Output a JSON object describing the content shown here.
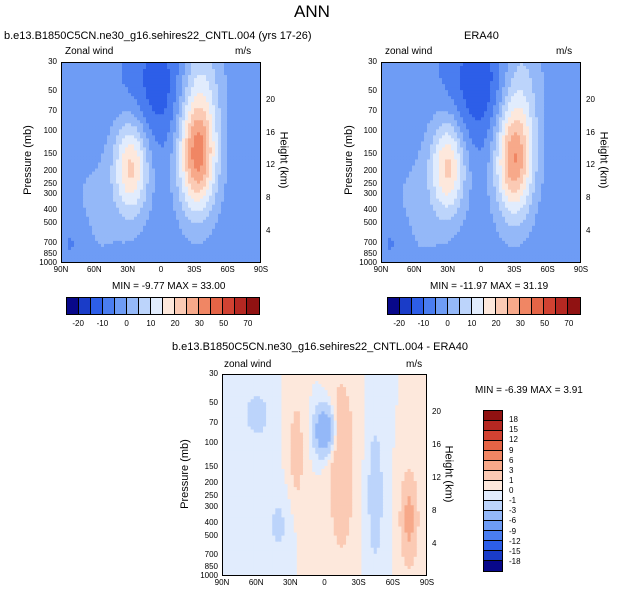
{
  "title": "ANN",
  "panels": [
    {
      "id": "model",
      "subtitle": "b.e13.B1850C5CN.ne30_g16.sehires22_CNTL.004 (yrs 17-26)",
      "left_label": "Zonal wind",
      "right_label": "m/s",
      "stats": "MIN = -9.77   MAX = 33.00"
    },
    {
      "id": "obs",
      "subtitle": "ERA40",
      "left_label": "zonal wind",
      "right_label": "m/s",
      "stats": "MIN = -11.97   MAX = 31.19"
    },
    {
      "id": "diff",
      "subtitle": "b.e13.B1850C5CN.ne30_g16.sehires22_CNTL.004 - ERA40",
      "left_label": "zonal wind",
      "right_label": "m/s",
      "stats": "MIN = -6.39   MAX =  3.91"
    }
  ],
  "axes": {
    "ylabel": "Pressure (mb)",
    "y2label": "Height (km)",
    "x_ticks": [
      "90N",
      "60N",
      "30N",
      "0",
      "30S",
      "60S",
      "90S"
    ],
    "y_ticks": [
      "30",
      "50",
      "70",
      "100",
      "150",
      "200",
      "250",
      "300",
      "400",
      "500",
      "700",
      "850",
      "1000"
    ],
    "y2_ticks": [
      "20",
      "16",
      "12",
      "8",
      "4"
    ]
  },
  "colorbars": {
    "main": {
      "labels": [
        "-20",
        "-10",
        "0",
        "10",
        "20",
        "30",
        "50",
        "70"
      ],
      "colors": [
        "#08088a",
        "#1a3cc8",
        "#2d5ee8",
        "#4a7df0",
        "#6e9cf5",
        "#94b8f8",
        "#bcd4fb",
        "#e1ecfd",
        "#fde8dc",
        "#fbcab4",
        "#f7a98a",
        "#f08664",
        "#e46446",
        "#d14232",
        "#b52822",
        "#901212"
      ]
    },
    "diff": {
      "labels": [
        "18",
        "15",
        "12",
        "9",
        "6",
        "3",
        "1",
        "0",
        "-1",
        "-3",
        "-6",
        "-9",
        "-12",
        "-15",
        "-18"
      ],
      "colors": [
        "#901212",
        "#b52822",
        "#d14232",
        "#e46446",
        "#f08664",
        "#f7a98a",
        "#fbcab4",
        "#fde8dc",
        "#e1ecfd",
        "#bcd4fb",
        "#94b8f8",
        "#6e9cf5",
        "#4a7df0",
        "#2d5ee8",
        "#1a3cc8",
        "#08088a"
      ]
    }
  },
  "chart_data": [
    {
      "type": "heatmap",
      "title": "b.e13.B1850C5CN.ne30_g16.sehires22_CNTL.004 (yrs 17-26)",
      "field": "Zonal wind",
      "units": "m/s",
      "xlabel": "",
      "ylabel": "Pressure (mb)",
      "y2label": "Height (km)",
      "x": [
        "90N",
        "60N",
        "30N",
        "0",
        "30S",
        "60S",
        "90S"
      ],
      "y": [
        30,
        50,
        70,
        100,
        150,
        200,
        250,
        300,
        400,
        500,
        700,
        850,
        1000
      ],
      "min": -9.77,
      "max": 33.0,
      "features": [
        {
          "kind": "jet",
          "lat": 27,
          "p": 200,
          "value": 25
        },
        {
          "kind": "jet",
          "lat": -33,
          "p": 200,
          "value": 33
        },
        {
          "kind": "easterly",
          "lat": 0,
          "p": 50,
          "value": -9.77
        }
      ]
    },
    {
      "type": "heatmap",
      "title": "ERA40",
      "field": "zonal wind",
      "units": "m/s",
      "xlabel": "",
      "ylabel": "Pressure (mb)",
      "y2label": "Height (km)",
      "x": [
        "90N",
        "60N",
        "30N",
        "0",
        "30S",
        "60S",
        "90S"
      ],
      "y": [
        30,
        50,
        70,
        100,
        150,
        200,
        250,
        300,
        400,
        500,
        700,
        850,
        1000
      ],
      "min": -11.97,
      "max": 31.19,
      "features": [
        {
          "kind": "jet",
          "lat": 30,
          "p": 200,
          "value": 25
        },
        {
          "kind": "jet",
          "lat": -30,
          "p": 200,
          "value": 31.19
        },
        {
          "kind": "easterly",
          "lat": 0,
          "p": 50,
          "value": -11.97
        }
      ]
    },
    {
      "type": "heatmap",
      "title": "b.e13.B1850C5CN.ne30_g16.sehires22_CNTL.004 - ERA40",
      "field": "zonal wind",
      "units": "m/s",
      "xlabel": "",
      "ylabel": "Pressure (mb)",
      "y2label": "Height (km)",
      "x": [
        "90N",
        "60N",
        "30N",
        "0",
        "30S",
        "60S",
        "90S"
      ],
      "y": [
        30,
        50,
        70,
        100,
        150,
        200,
        250,
        300,
        400,
        500,
        700,
        850,
        1000
      ],
      "min": -6.39,
      "max": 3.91,
      "features": [
        {
          "kind": "negative",
          "lat": 0,
          "p": 70,
          "value": -6.39
        },
        {
          "kind": "positive",
          "lat": -15,
          "p": 200,
          "value": 3
        },
        {
          "kind": "positive",
          "lat": -75,
          "p": 500,
          "value": 3.91
        }
      ]
    }
  ]
}
